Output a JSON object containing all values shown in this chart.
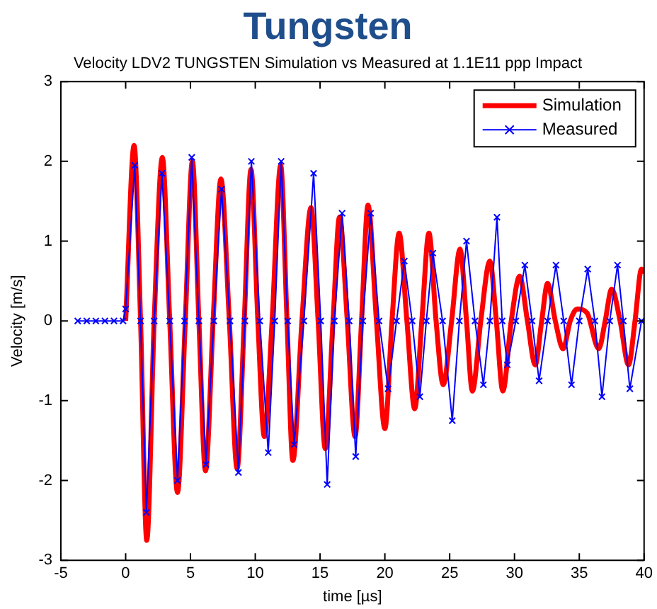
{
  "chart_data": {
    "type": "line",
    "title": "Tungsten",
    "subtitle": "Velocity LDV2 TUNGSTEN Simulation vs Measured at 1.1E11 ppp Impact",
    "xlabel": "time [µs]",
    "ylabel": "Velocity [m/s]",
    "xlim": [
      -5,
      40
    ],
    "xticks": [
      -5,
      0,
      5,
      10,
      15,
      20,
      25,
      30,
      35,
      40
    ],
    "ylim": [
      -3,
      3
    ],
    "yticks": [
      -3,
      -2,
      -1,
      0,
      1,
      2,
      3
    ],
    "grid": false,
    "legend": "top right",
    "series": [
      {
        "name": "Simulation",
        "color": "#ff0000",
        "marker": "none",
        "x": [
          0,
          0.65,
          1.15,
          1.63,
          2.2,
          2.83,
          3.4,
          4.0,
          4.6,
          5.15,
          5.65,
          6.16,
          6.75,
          7.35,
          8.0,
          8.6,
          9.15,
          9.67,
          10.2,
          10.7,
          11.3,
          11.96,
          12.45,
          12.9,
          13.6,
          14.3,
          14.85,
          15.4,
          16.0,
          16.5,
          17.1,
          17.7,
          18.2,
          18.7,
          19.35,
          20.0,
          20.55,
          21.1,
          21.7,
          22.3,
          22.85,
          23.4,
          23.95,
          24.5,
          25.15,
          25.8,
          26.3,
          26.75,
          27.4,
          28.1,
          28.6,
          29.1,
          29.75,
          30.4,
          31.0,
          31.6,
          32.1,
          32.55,
          33.15,
          33.75,
          34.3,
          34.85,
          35.6,
          36.5,
          37.0,
          37.5,
          38.15,
          38.8,
          39.3,
          39.8,
          40
        ],
        "values": [
          0,
          2.2,
          0,
          -2.75,
          0,
          2.05,
          0,
          -2.15,
          0,
          2.0,
          0,
          -1.88,
          0,
          1.78,
          0,
          -1.85,
          0,
          1.9,
          0,
          -1.45,
          0,
          1.95,
          0,
          -1.75,
          0,
          1.42,
          0,
          -1.6,
          0,
          1.3,
          0,
          -1.45,
          0,
          1.45,
          0,
          -1.35,
          0,
          1.1,
          0,
          -1.1,
          0,
          1.1,
          0,
          -0.8,
          0,
          0.9,
          0,
          -0.88,
          0,
          0.75,
          0,
          -0.88,
          0,
          0.56,
          0,
          -0.55,
          0,
          0.47,
          0,
          -0.35,
          0,
          0.15,
          0.1,
          -0.35,
          0,
          0.4,
          0,
          -0.55,
          0,
          0.65,
          0.6
        ]
      },
      {
        "name": "Measured",
        "color": "#0000ff",
        "marker": "cross",
        "x": [
          -3.7,
          -3,
          -2.3,
          -1.6,
          -0.9,
          -0.2,
          0,
          0.7,
          1.15,
          1.6,
          2.2,
          2.8,
          3.4,
          4.0,
          4.55,
          5.1,
          5.65,
          6.2,
          6.8,
          7.4,
          8.05,
          8.7,
          9.2,
          9.7,
          10.35,
          11.0,
          11.5,
          12.0,
          12.5,
          13.0,
          13.75,
          14.5,
          15.05,
          15.55,
          16.1,
          16.7,
          17.25,
          17.75,
          18.3,
          18.9,
          19.55,
          20.25,
          20.9,
          21.5,
          22.1,
          22.7,
          23.2,
          23.7,
          24.45,
          25.2,
          25.75,
          26.3,
          26.95,
          27.6,
          28.1,
          28.65,
          29.05,
          29.45,
          30.1,
          30.8,
          31.35,
          31.9,
          32.55,
          33.2,
          33.8,
          34.4,
          35.0,
          35.65,
          36.2,
          36.75,
          37.35,
          37.95,
          38.4,
          38.9,
          39.8
        ],
        "values": [
          0,
          0,
          0,
          0,
          0,
          0,
          0.15,
          1.95,
          0,
          -2.4,
          0,
          1.85,
          0,
          -2.0,
          0,
          2.05,
          0,
          -1.8,
          0,
          1.65,
          0,
          -1.9,
          0,
          2.0,
          0,
          -1.65,
          0,
          2.0,
          0,
          -1.55,
          0,
          1.85,
          0,
          -2.05,
          0,
          1.35,
          0,
          -1.7,
          0,
          1.35,
          0,
          -0.85,
          0,
          0.75,
          0,
          -0.95,
          0,
          0.85,
          0,
          -1.25,
          0,
          1.0,
          0,
          -0.8,
          0,
          1.3,
          0,
          -0.55,
          0,
          0.7,
          0,
          -0.75,
          0,
          0.7,
          0,
          -0.8,
          0,
          0.65,
          0,
          -0.95,
          0,
          0.7,
          0,
          -0.85,
          0
        ]
      }
    ]
  }
}
